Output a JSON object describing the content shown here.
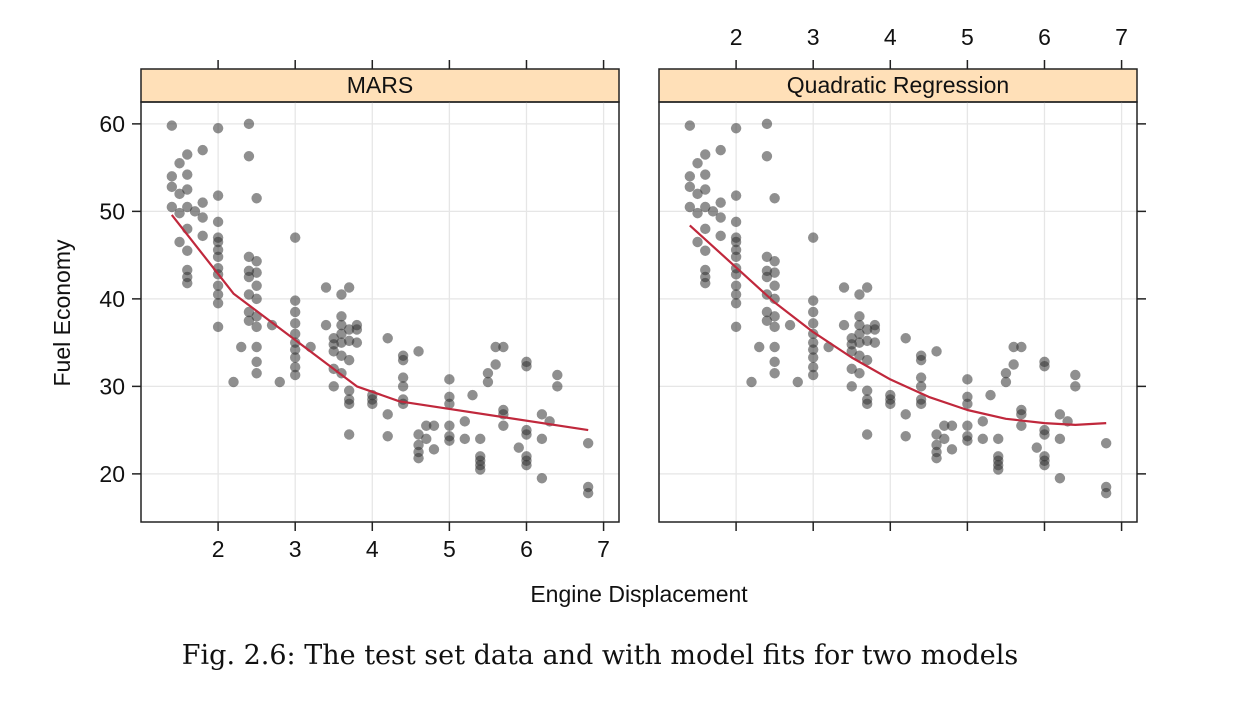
{
  "caption": "Fig. 2.6: The test set data and with model fits for two models",
  "chart_data": {
    "type": "scatter",
    "xlabel": "Engine Displacement",
    "ylabel": "Fuel Economy",
    "xlim": [
      1.0,
      7.2
    ],
    "ylim": [
      14.5,
      62.5
    ],
    "xticks": [
      2,
      3,
      4,
      5,
      6,
      7
    ],
    "yticks": [
      20,
      30,
      40,
      50,
      60
    ],
    "grid": true,
    "colors": {
      "points": "#333333",
      "fit": "#c0283c",
      "strip": "#ffe0b8"
    },
    "panels": [
      {
        "name": "MARS",
        "fit": [
          [
            1.4,
            49.6
          ],
          [
            2.2,
            40.6
          ],
          [
            3.8,
            30.0
          ],
          [
            4.35,
            28.3
          ],
          [
            6.8,
            25.0
          ]
        ]
      },
      {
        "name": "Quadratic Regression",
        "fit": [
          [
            1.4,
            48.4
          ],
          [
            2.0,
            43.6
          ],
          [
            2.5,
            39.6
          ],
          [
            3.0,
            36.2
          ],
          [
            3.5,
            33.3
          ],
          [
            4.0,
            30.8
          ],
          [
            4.5,
            28.8
          ],
          [
            5.0,
            27.3
          ],
          [
            5.5,
            26.3
          ],
          [
            6.0,
            25.8
          ],
          [
            6.4,
            25.6
          ],
          [
            6.8,
            25.8
          ]
        ]
      }
    ],
    "points": [
      [
        1.4,
        59.8
      ],
      [
        1.4,
        54.0
      ],
      [
        1.4,
        52.8
      ],
      [
        1.4,
        50.5
      ],
      [
        1.5,
        55.5
      ],
      [
        1.5,
        52.0
      ],
      [
        1.5,
        49.8
      ],
      [
        1.5,
        46.5
      ],
      [
        1.6,
        56.5
      ],
      [
        1.6,
        54.2
      ],
      [
        1.6,
        52.5
      ],
      [
        1.6,
        50.5
      ],
      [
        1.6,
        48.0
      ],
      [
        1.6,
        45.5
      ],
      [
        1.6,
        43.3
      ],
      [
        1.6,
        42.5
      ],
      [
        1.6,
        41.8
      ],
      [
        1.7,
        50.0
      ],
      [
        1.8,
        57.0
      ],
      [
        1.8,
        51.0
      ],
      [
        1.8,
        49.3
      ],
      [
        1.8,
        47.2
      ],
      [
        2.0,
        59.5
      ],
      [
        2.0,
        51.8
      ],
      [
        2.0,
        48.8
      ],
      [
        2.0,
        47.0
      ],
      [
        2.0,
        46.5
      ],
      [
        2.0,
        45.6
      ],
      [
        2.0,
        44.8
      ],
      [
        2.0,
        43.5
      ],
      [
        2.0,
        42.8
      ],
      [
        2.0,
        41.5
      ],
      [
        2.0,
        40.5
      ],
      [
        2.0,
        39.5
      ],
      [
        2.0,
        36.8
      ],
      [
        2.2,
        30.5
      ],
      [
        2.3,
        34.5
      ],
      [
        2.4,
        60.0
      ],
      [
        2.4,
        56.3
      ],
      [
        2.4,
        44.8
      ],
      [
        2.4,
        43.2
      ],
      [
        2.4,
        42.5
      ],
      [
        2.4,
        40.5
      ],
      [
        2.4,
        38.5
      ],
      [
        2.4,
        37.5
      ],
      [
        2.5,
        51.5
      ],
      [
        2.5,
        44.3
      ],
      [
        2.5,
        43.0
      ],
      [
        2.5,
        41.5
      ],
      [
        2.5,
        40.0
      ],
      [
        2.5,
        38.0
      ],
      [
        2.5,
        36.8
      ],
      [
        2.5,
        34.5
      ],
      [
        2.5,
        32.8
      ],
      [
        2.5,
        31.5
      ],
      [
        2.7,
        37.0
      ],
      [
        2.8,
        30.5
      ],
      [
        3.0,
        47.0
      ],
      [
        3.0,
        39.8
      ],
      [
        3.0,
        38.5
      ],
      [
        3.0,
        37.2
      ],
      [
        3.0,
        36.0
      ],
      [
        3.0,
        35.0
      ],
      [
        3.0,
        34.2
      ],
      [
        3.0,
        33.3
      ],
      [
        3.0,
        32.2
      ],
      [
        3.0,
        31.3
      ],
      [
        3.2,
        34.5
      ],
      [
        3.4,
        41.3
      ],
      [
        3.4,
        37.0
      ],
      [
        3.5,
        35.5
      ],
      [
        3.5,
        34.8
      ],
      [
        3.5,
        34.0
      ],
      [
        3.5,
        32.0
      ],
      [
        3.5,
        30.0
      ],
      [
        3.6,
        40.5
      ],
      [
        3.6,
        38.0
      ],
      [
        3.6,
        37.0
      ],
      [
        3.6,
        36.0
      ],
      [
        3.6,
        35.0
      ],
      [
        3.6,
        33.5
      ],
      [
        3.6,
        31.5
      ],
      [
        3.7,
        41.3
      ],
      [
        3.7,
        36.5
      ],
      [
        3.7,
        35.2
      ],
      [
        3.7,
        33.0
      ],
      [
        3.7,
        29.5
      ],
      [
        3.7,
        28.5
      ],
      [
        3.7,
        28.0
      ],
      [
        3.7,
        24.5
      ],
      [
        3.8,
        37.0
      ],
      [
        3.8,
        36.5
      ],
      [
        3.8,
        35.0
      ],
      [
        4.0,
        29.0
      ],
      [
        4.0,
        28.5
      ],
      [
        4.0,
        28.0
      ],
      [
        4.2,
        35.5
      ],
      [
        4.2,
        26.8
      ],
      [
        4.2,
        24.3
      ],
      [
        4.4,
        33.5
      ],
      [
        4.4,
        33.0
      ],
      [
        4.4,
        31.0
      ],
      [
        4.4,
        30.0
      ],
      [
        4.4,
        28.5
      ],
      [
        4.4,
        28.0
      ],
      [
        4.6,
        34.0
      ],
      [
        4.6,
        24.5
      ],
      [
        4.6,
        23.3
      ],
      [
        4.6,
        22.5
      ],
      [
        4.6,
        21.8
      ],
      [
        4.7,
        25.5
      ],
      [
        4.7,
        24.0
      ],
      [
        4.8,
        25.5
      ],
      [
        4.8,
        22.8
      ],
      [
        5.0,
        30.8
      ],
      [
        5.0,
        28.8
      ],
      [
        5.0,
        28.0
      ],
      [
        5.0,
        25.5
      ],
      [
        5.0,
        24.3
      ],
      [
        5.0,
        23.8
      ],
      [
        5.2,
        26.0
      ],
      [
        5.2,
        24.0
      ],
      [
        5.3,
        29.0
      ],
      [
        5.4,
        24.0
      ],
      [
        5.4,
        22.0
      ],
      [
        5.4,
        21.5
      ],
      [
        5.4,
        21.0
      ],
      [
        5.4,
        20.5
      ],
      [
        5.5,
        31.5
      ],
      [
        5.5,
        30.5
      ],
      [
        5.6,
        34.5
      ],
      [
        5.6,
        32.5
      ],
      [
        5.7,
        34.5
      ],
      [
        5.7,
        27.3
      ],
      [
        5.7,
        26.8
      ],
      [
        5.7,
        25.5
      ],
      [
        5.9,
        23.0
      ],
      [
        6.0,
        32.8
      ],
      [
        6.0,
        32.3
      ],
      [
        6.0,
        25.0
      ],
      [
        6.0,
        24.5
      ],
      [
        6.0,
        22.0
      ],
      [
        6.0,
        21.5
      ],
      [
        6.0,
        21.0
      ],
      [
        6.2,
        24.0
      ],
      [
        6.2,
        26.8
      ],
      [
        6.2,
        19.5
      ],
      [
        6.3,
        26.0
      ],
      [
        6.4,
        31.3
      ],
      [
        6.4,
        30.0
      ],
      [
        6.8,
        23.5
      ],
      [
        6.8,
        18.5
      ],
      [
        6.8,
        17.8
      ]
    ]
  }
}
